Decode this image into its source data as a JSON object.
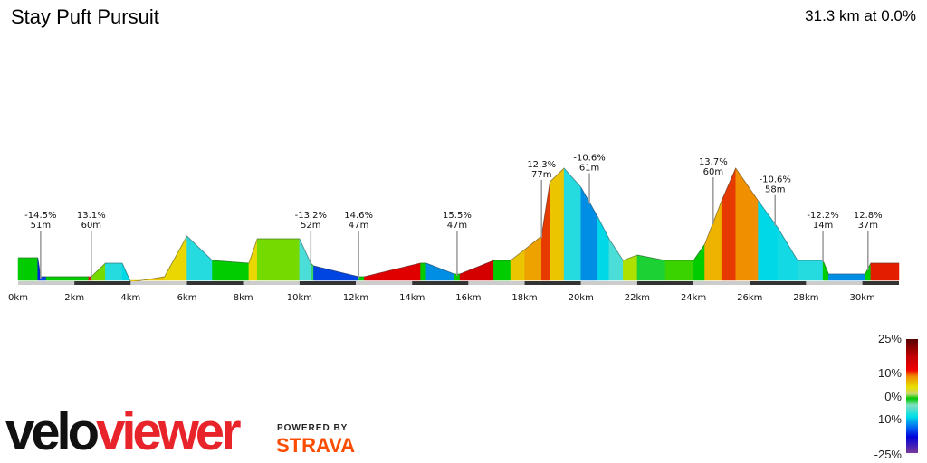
{
  "header": {
    "title": "Stay Puft Pursuit",
    "summary": "31.3 km at 0.0%"
  },
  "chart_data": {
    "type": "area",
    "xlabel": "",
    "ylabel": "",
    "x_ticks": [
      "0km",
      "2km",
      "4km",
      "6km",
      "8km",
      "10km",
      "12km",
      "14km",
      "16km",
      "18km",
      "20km",
      "22km",
      "24km",
      "26km",
      "28km",
      "30km"
    ],
    "xlim_km": [
      0,
      31.3
    ],
    "profile_km": [
      0,
      0.7,
      0.8,
      1.0,
      2.5,
      2.6,
      3.1,
      3.7,
      4.0,
      5.2,
      6.0,
      6.9,
      8.2,
      8.5,
      10.0,
      10.4,
      10.5,
      12.1,
      12.3,
      14.3,
      14.5,
      15.5,
      15.7,
      16.9,
      17.5,
      18.0,
      18.6,
      18.9,
      19.4,
      20.0,
      20.6,
      21.0,
      21.5,
      22.0,
      23.0,
      24.0,
      24.4,
      25.0,
      25.5,
      26.3,
      27.0,
      27.7,
      28.6,
      28.8,
      30.1,
      30.3,
      31.3
    ],
    "profile_elev_m": [
      19,
      19,
      12,
      12,
      12,
      12,
      17,
      17,
      10,
      12,
      27,
      18,
      17,
      26,
      26,
      17,
      16,
      12,
      12,
      17,
      17,
      13,
      13,
      18,
      18,
      22,
      27,
      47,
      52,
      45,
      34,
      26,
      18,
      20,
      18,
      18,
      24,
      40,
      52,
      40,
      30,
      18,
      18,
      13,
      13,
      17,
      17
    ],
    "segment_grade_pct": [
      0,
      -15,
      -14,
      0,
      13,
      2,
      -8,
      -10,
      6,
      5,
      -8,
      0,
      5,
      2,
      -6,
      -2,
      -14,
      0,
      14,
      0,
      -12,
      0,
      15,
      0,
      6,
      8,
      12,
      6,
      -8,
      -12,
      -10,
      -6,
      3,
      -1,
      1,
      0,
      7,
      12,
      9,
      -10,
      -9,
      -8,
      0,
      -12,
      0,
      13,
      0
    ],
    "annotations": [
      {
        "km": 0.8,
        "grade": "-14.5%",
        "elev": "51m"
      },
      {
        "km": 2.6,
        "grade": "13.1%",
        "elev": "60m"
      },
      {
        "km": 10.4,
        "grade": "-13.2%",
        "elev": "52m"
      },
      {
        "km": 12.1,
        "grade": "14.6%",
        "elev": "47m"
      },
      {
        "km": 15.6,
        "grade": "15.5%",
        "elev": "47m"
      },
      {
        "km": 18.6,
        "grade": "12.3%",
        "elev": "77m"
      },
      {
        "km": 20.3,
        "grade": "-10.6%",
        "elev": "61m"
      },
      {
        "km": 24.7,
        "grade": "13.7%",
        "elev": "60m"
      },
      {
        "km": 26.9,
        "grade": "-10.6%",
        "elev": "58m"
      },
      {
        "km": 28.6,
        "grade": "-12.2%",
        "elev": "14m"
      },
      {
        "km": 30.2,
        "grade": "12.8%",
        "elev": "37m"
      }
    ]
  },
  "legend": {
    "labels": [
      "25%",
      "10%",
      "0%",
      "-10%",
      "-25%"
    ]
  },
  "branding": {
    "logo_a": "velo",
    "logo_b": "viewer",
    "powered_by": "POWERED BY",
    "strava": "STRAVA"
  },
  "colors": {
    "velo": "#111111",
    "viewer": "#e8232a",
    "strava": "#fc4c02"
  }
}
